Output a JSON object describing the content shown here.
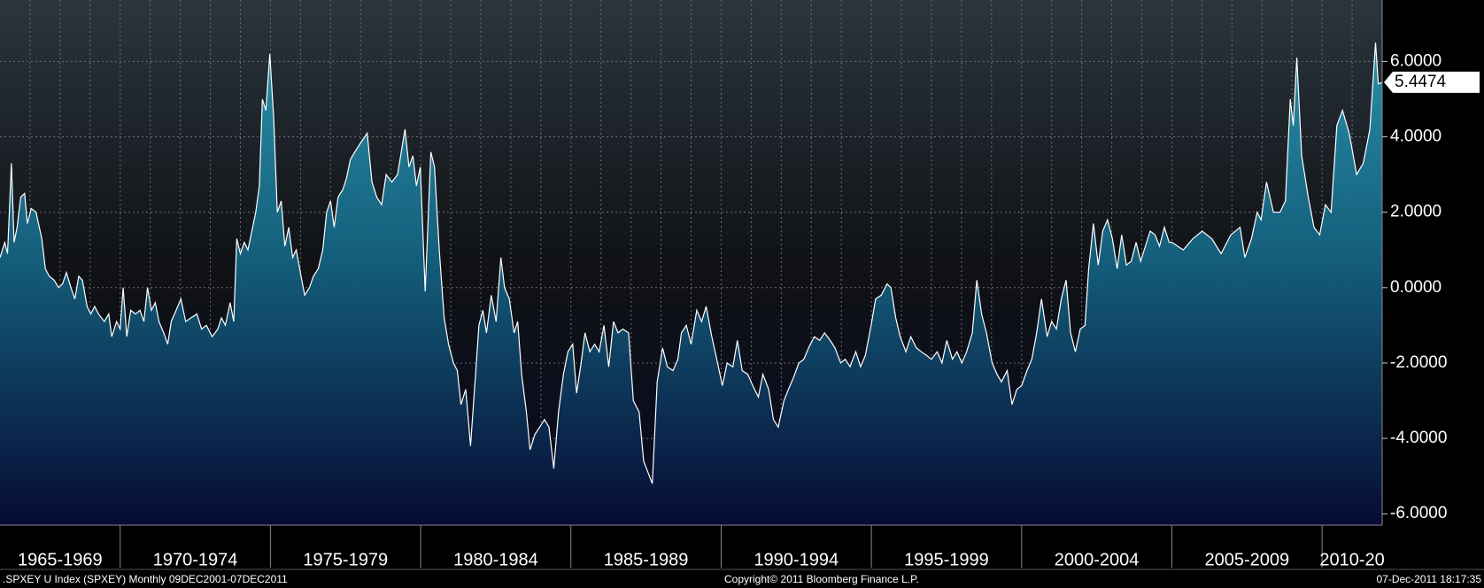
{
  "chart_data": {
    "type": "area",
    "source": ".SPXEY U Index (SPXEY)  Monthly 09DEC2001-07DEC2011",
    "copyright": "Copyright© 2011 Bloomberg Finance L.P.",
    "timestamp": "07-Dec-2011 18:17:35",
    "categories": [
      "1965-1969",
      "1970-1974",
      "1975-1979",
      "1980-1984",
      "1985-1989",
      "1990-1994",
      "1995-1999",
      "2000-2004",
      "2005-2009",
      "2010-20"
    ],
    "xlim": [
      1966,
      2012
    ],
    "xticks": [
      1970,
      1975,
      1980,
      1985,
      1990,
      1995,
      2000,
      2005,
      2010
    ],
    "x_gridlines": [
      1967,
      1968,
      1969,
      1970,
      1971,
      1972,
      1973,
      1974,
      1975,
      1976,
      1977,
      1978,
      1979,
      1980,
      1981,
      1982,
      1983,
      1984,
      1985,
      1986,
      1987,
      1988,
      1989,
      1990,
      1991,
      1992,
      1993,
      1994,
      1995,
      1996,
      1997,
      1998,
      1999,
      2000,
      2001,
      2002,
      2003,
      2004,
      2005,
      2006,
      2007,
      2008,
      2009,
      2010,
      2011
    ],
    "ylim": [
      -6.3,
      7.63
    ],
    "yticks": [
      {
        "value": 6,
        "label": "6.0000"
      },
      {
        "value": 4,
        "label": "4.0000"
      },
      {
        "value": 2,
        "label": "2.0000"
      },
      {
        "value": 0,
        "label": "0.0000"
      },
      {
        "value": -2,
        "label": "-2.0000"
      },
      {
        "value": -4,
        "label": "-4.0000"
      },
      {
        "value": -6,
        "label": "-6.0000"
      }
    ],
    "grid": true,
    "color": "#ffffff",
    "x": [
      1966.0,
      1966.16,
      1966.25,
      1966.38,
      1966.47,
      1966.57,
      1966.69,
      1966.82,
      1966.91,
      1967.04,
      1967.2,
      1967.39,
      1967.51,
      1967.64,
      1967.8,
      1967.95,
      1968.08,
      1968.21,
      1968.36,
      1968.49,
      1968.62,
      1968.74,
      1968.9,
      1969.02,
      1969.15,
      1969.28,
      1969.47,
      1969.62,
      1969.72,
      1969.88,
      1970.0,
      1970.1,
      1970.22,
      1970.35,
      1970.51,
      1970.66,
      1970.79,
      1970.91,
      1971.04,
      1971.17,
      1971.29,
      1971.45,
      1971.58,
      1971.7,
      1971.86,
      1972.02,
      1972.18,
      1972.36,
      1972.55,
      1972.71,
      1972.87,
      1973.06,
      1973.25,
      1973.37,
      1973.5,
      1973.66,
      1973.78,
      1973.88,
      1974.0,
      1974.13,
      1974.25,
      1974.38,
      1974.51,
      1974.63,
      1974.73,
      1974.85,
      1974.98,
      1975.11,
      1975.23,
      1975.36,
      1975.48,
      1975.61,
      1975.74,
      1975.86,
      1976.02,
      1976.14,
      1976.3,
      1976.43,
      1976.59,
      1976.74,
      1976.87,
      1977.0,
      1977.12,
      1977.25,
      1977.41,
      1977.53,
      1977.66,
      1977.81,
      1977.97,
      1978.22,
      1978.38,
      1978.54,
      1978.7,
      1978.85,
      1979.04,
      1979.23,
      1979.48,
      1979.61,
      1979.74,
      1979.86,
      1979.99,
      1980.15,
      1980.34,
      1980.46,
      1980.62,
      1980.78,
      1980.93,
      1981.09,
      1981.22,
      1981.34,
      1981.5,
      1981.66,
      1981.82,
      1981.94,
      1982.07,
      1982.19,
      1982.35,
      1982.51,
      1982.67,
      1982.79,
      1982.95,
      1983.11,
      1983.23,
      1983.36,
      1983.52,
      1983.64,
      1983.8,
      1983.96,
      1984.12,
      1984.27,
      1984.43,
      1984.59,
      1984.75,
      1984.9,
      1985.06,
      1985.19,
      1985.34,
      1985.47,
      1985.63,
      1985.79,
      1985.94,
      1986.1,
      1986.26,
      1986.42,
      1986.57,
      1986.73,
      1986.92,
      1987.08,
      1987.27,
      1987.42,
      1987.71,
      1987.87,
      1988.05,
      1988.21,
      1988.4,
      1988.56,
      1988.68,
      1988.84,
      1989.0,
      1989.19,
      1989.35,
      1989.5,
      1989.69,
      1989.88,
      1990.04,
      1990.2,
      1990.39,
      1990.54,
      1990.7,
      1990.89,
      1991.05,
      1991.24,
      1991.39,
      1991.58,
      1991.74,
      1991.9,
      1992.09,
      1992.24,
      1992.4,
      1992.59,
      1992.75,
      1992.91,
      1993.1,
      1993.28,
      1993.44,
      1993.63,
      1993.79,
      1993.98,
      1994.13,
      1994.29,
      1994.48,
      1994.64,
      1994.8,
      1994.99,
      1995.14,
      1995.33,
      1995.52,
      1995.65,
      1995.81,
      1995.96,
      1996.15,
      1996.31,
      1996.5,
      1996.66,
      1996.84,
      1997.0,
      1997.19,
      1997.35,
      1997.51,
      1997.7,
      1997.85,
      1998.01,
      1998.17,
      1998.36,
      1998.51,
      1998.67,
      1998.83,
      1999.02,
      1999.18,
      1999.33,
      1999.52,
      1999.68,
      1999.84,
      2000.0,
      2000.18,
      2000.34,
      2000.5,
      2000.66,
      2000.85,
      2001.0,
      2001.16,
      2001.32,
      2001.48,
      2001.63,
      2001.79,
      2001.95,
      2002.11,
      2002.23,
      2002.39,
      2002.55,
      2002.7,
      2002.86,
      2003.02,
      2003.18,
      2003.33,
      2003.49,
      2003.65,
      2003.81,
      2003.96,
      2004.12,
      2004.28,
      2004.44,
      2004.59,
      2004.75,
      2004.91,
      2005.0,
      2005.38,
      2005.7,
      2006.01,
      2006.33,
      2006.64,
      2006.96,
      2007.27,
      2007.43,
      2007.65,
      2007.84,
      2007.97,
      2008.15,
      2008.38,
      2008.6,
      2008.78,
      2008.94,
      2009.04,
      2009.16,
      2009.32,
      2009.54,
      2009.73,
      2009.92,
      2010.11,
      2010.3,
      2010.49,
      2010.68,
      2010.9,
      2011.15,
      2011.37,
      2011.59,
      2011.78,
      2011.87,
      2012.0
    ],
    "values": [
      0.8,
      1.2,
      0.9,
      3.3,
      1.2,
      1.6,
      2.4,
      2.5,
      1.7,
      2.1,
      2.0,
      1.3,
      0.5,
      0.3,
      0.2,
      0.0,
      0.1,
      0.4,
      0.0,
      -0.3,
      0.3,
      0.2,
      -0.5,
      -0.7,
      -0.5,
      -0.7,
      -0.9,
      -0.7,
      -1.3,
      -0.9,
      -1.1,
      0.0,
      -1.3,
      -0.6,
      -0.7,
      -0.6,
      -0.9,
      0.0,
      -0.6,
      -0.4,
      -0.9,
      -1.2,
      -1.5,
      -0.9,
      -0.6,
      -0.3,
      -0.9,
      -0.8,
      -0.7,
      -1.1,
      -1.0,
      -1.3,
      -1.1,
      -0.8,
      -1.0,
      -0.4,
      -0.9,
      1.3,
      0.9,
      1.2,
      1.0,
      1.5,
      2.0,
      2.7,
      5.0,
      4.7,
      6.2,
      4.5,
      2.0,
      2.3,
      1.1,
      1.6,
      0.8,
      1.0,
      0.3,
      -0.2,
      0.0,
      0.3,
      0.5,
      1.0,
      2.0,
      2.3,
      1.6,
      2.4,
      2.6,
      2.9,
      3.4,
      3.6,
      3.8,
      4.1,
      2.8,
      2.4,
      2.2,
      3.0,
      2.8,
      3.0,
      4.2,
      3.2,
      3.5,
      2.7,
      3.2,
      -0.1,
      3.6,
      3.2,
      1.0,
      -0.8,
      -1.5,
      -2.0,
      -2.2,
      -3.1,
      -2.7,
      -4.2,
      -2.4,
      -1.0,
      -0.6,
      -1.2,
      -0.2,
      -0.9,
      0.8,
      0.0,
      -0.3,
      -1.2,
      -0.9,
      -2.3,
      -3.3,
      -4.3,
      -3.9,
      -3.7,
      -3.5,
      -3.7,
      -4.8,
      -3.3,
      -2.3,
      -1.7,
      -1.5,
      -2.8,
      -2.0,
      -1.2,
      -1.7,
      -1.5,
      -1.7,
      -1.0,
      -2.1,
      -0.9,
      -1.2,
      -1.1,
      -1.2,
      -3.0,
      -3.3,
      -4.6,
      -5.2,
      -2.5,
      -1.6,
      -2.1,
      -2.2,
      -1.9,
      -1.2,
      -1.0,
      -1.5,
      -0.6,
      -0.9,
      -0.5,
      -1.3,
      -2.0,
      -2.6,
      -2.0,
      -2.1,
      -1.4,
      -2.2,
      -2.3,
      -2.6,
      -2.9,
      -2.3,
      -2.7,
      -3.5,
      -3.7,
      -3.0,
      -2.7,
      -2.4,
      -2.0,
      -1.9,
      -1.6,
      -1.3,
      -1.4,
      -1.2,
      -1.4,
      -1.6,
      -2.0,
      -1.9,
      -2.1,
      -1.7,
      -2.1,
      -1.8,
      -1.0,
      -0.3,
      -0.2,
      0.1,
      0.0,
      -0.8,
      -1.3,
      -1.7,
      -1.3,
      -1.6,
      -1.7,
      -1.8,
      -1.9,
      -1.7,
      -2.0,
      -1.4,
      -1.9,
      -1.7,
      -2.0,
      -1.7,
      -1.2,
      0.2,
      -0.7,
      -1.2,
      -2.0,
      -2.3,
      -2.5,
      -2.2,
      -3.1,
      -2.7,
      -2.6,
      -2.2,
      -1.9,
      -1.2,
      -0.3,
      -1.3,
      -0.9,
      -1.1,
      -0.3,
      0.2,
      -1.2,
      -1.7,
      -1.1,
      -1.0,
      0.5,
      1.7,
      0.6,
      1.5,
      1.8,
      1.3,
      0.5,
      1.4,
      0.6,
      0.7,
      1.2,
      0.7,
      1.1,
      1.5,
      1.4,
      1.1,
      1.6,
      1.2,
      1.2,
      1.0,
      1.3,
      1.5,
      1.3,
      0.9,
      1.4,
      1.6,
      0.8,
      1.3,
      2.0,
      1.8,
      2.8,
      2.0,
      2.0,
      2.3,
      5.0,
      4.3,
      6.1,
      3.5,
      2.4,
      1.6,
      1.4,
      2.2,
      2.0,
      4.3,
      4.7,
      4.1,
      3.0,
      3.3,
      4.2,
      6.5,
      5.4,
      5.4474
    ]
  }
}
